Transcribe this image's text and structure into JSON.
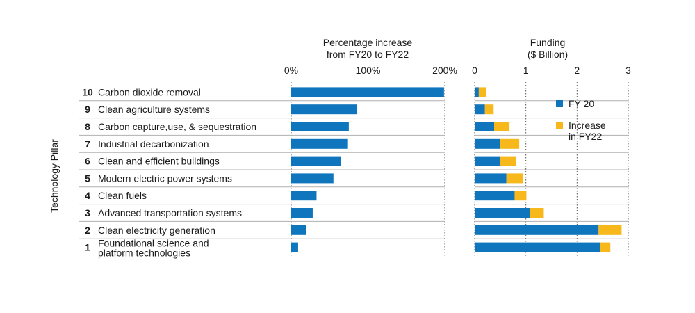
{
  "y_axis_title": "Technology Pillar",
  "legend": {
    "fy20": "FY 20",
    "increase_line1": "Increase",
    "increase_line2": "in FY22"
  },
  "colors": {
    "fy20": "#0f75bc",
    "increase": "#f6b81a",
    "separator": "#b0b0b0",
    "gridline": "#555555"
  },
  "chart_data": [
    {
      "type": "bar",
      "orientation": "horizontal",
      "title_line1": "Percentage increase",
      "title_line2": "from FY20 to FY22",
      "xlim": [
        0,
        200
      ],
      "ticks": [
        0,
        100,
        200
      ],
      "tick_labels": [
        "0%",
        "100%",
        "200%"
      ],
      "grid": true,
      "categories": [
        {
          "num": "10",
          "label": "Carbon dioxide removal"
        },
        {
          "num": "9",
          "label": "Clean agriculture systems"
        },
        {
          "num": "8",
          "label": "Carbon capture,use, & sequestration"
        },
        {
          "num": "7",
          "label": "Industrial decarbonization"
        },
        {
          "num": "6",
          "label": "Clean and efficient buildings"
        },
        {
          "num": "5",
          "label": "Modern electric power systems"
        },
        {
          "num": "4",
          "label": "Clean fuels"
        },
        {
          "num": "3",
          "label": "Advanced transportation systems"
        },
        {
          "num": "2",
          "label": "Clean electricity generation"
        },
        {
          "num": "1",
          "label": "Foundational science and",
          "label2": "platform technologies"
        }
      ],
      "values": [
        199,
        86,
        75,
        73,
        65,
        55,
        33,
        28,
        19,
        9
      ]
    },
    {
      "type": "bar",
      "orientation": "horizontal",
      "stacked": true,
      "title_line1": "Funding",
      "title_line2": "($ Billion)",
      "xlim": [
        0,
        3
      ],
      "ticks": [
        0,
        1,
        2,
        3
      ],
      "tick_labels": [
        "0",
        "1",
        "2",
        "3"
      ],
      "grid": true,
      "legend_position": "right",
      "series": [
        {
          "name": "FY 20",
          "values": [
            0.08,
            0.2,
            0.38,
            0.5,
            0.5,
            0.62,
            0.78,
            1.08,
            2.42,
            2.45
          ]
        },
        {
          "name": "Increase in FY22",
          "values": [
            0.15,
            0.17,
            0.3,
            0.37,
            0.31,
            0.33,
            0.23,
            0.27,
            0.45,
            0.2
          ]
        }
      ]
    }
  ]
}
